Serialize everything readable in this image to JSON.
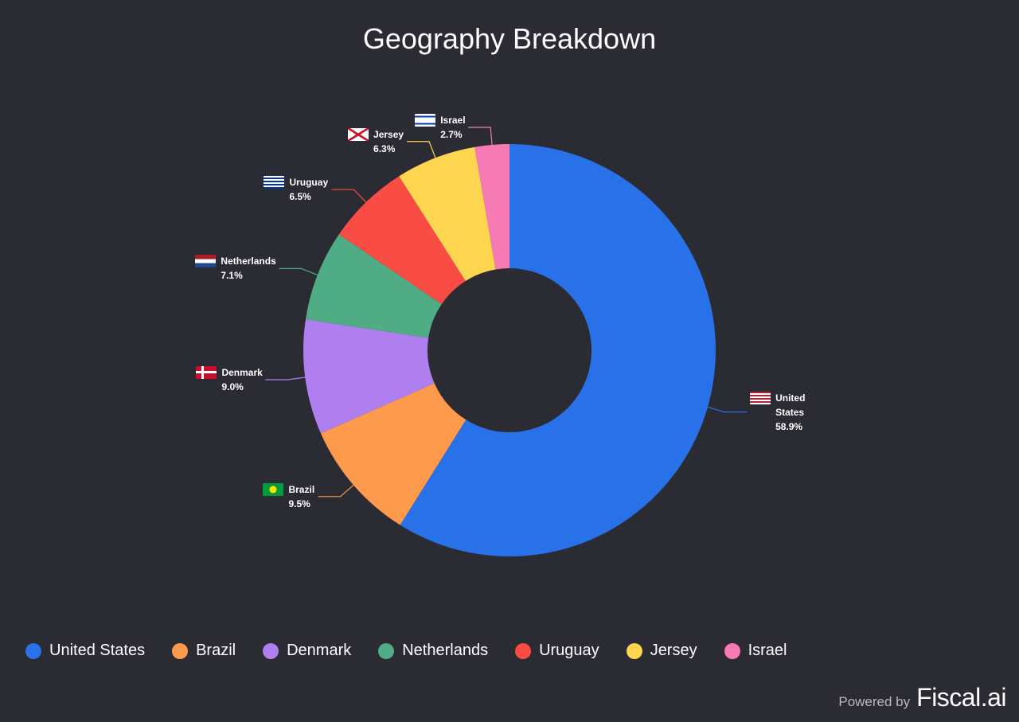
{
  "chart_data": {
    "type": "donut",
    "title": "Geography Breakdown",
    "categories": [
      "United States",
      "Brazil",
      "Denmark",
      "Netherlands",
      "Uruguay",
      "Jersey",
      "Israel"
    ],
    "values": [
      58.9,
      9.5,
      9.0,
      7.1,
      6.5,
      6.3,
      2.7
    ],
    "value_labels": [
      "58.9%",
      "9.5%",
      "9.0%",
      "7.1%",
      "6.5%",
      "6.3%",
      "2.7%"
    ],
    "colors": [
      "#2871e8",
      "#fd9a4b",
      "#b07fef",
      "#4fac84",
      "#f84c45",
      "#fdd54f",
      "#f67bb5"
    ],
    "legend": "bottom"
  },
  "footer": {
    "powered_by": "Powered by",
    "brand": "Fiscal.ai"
  }
}
